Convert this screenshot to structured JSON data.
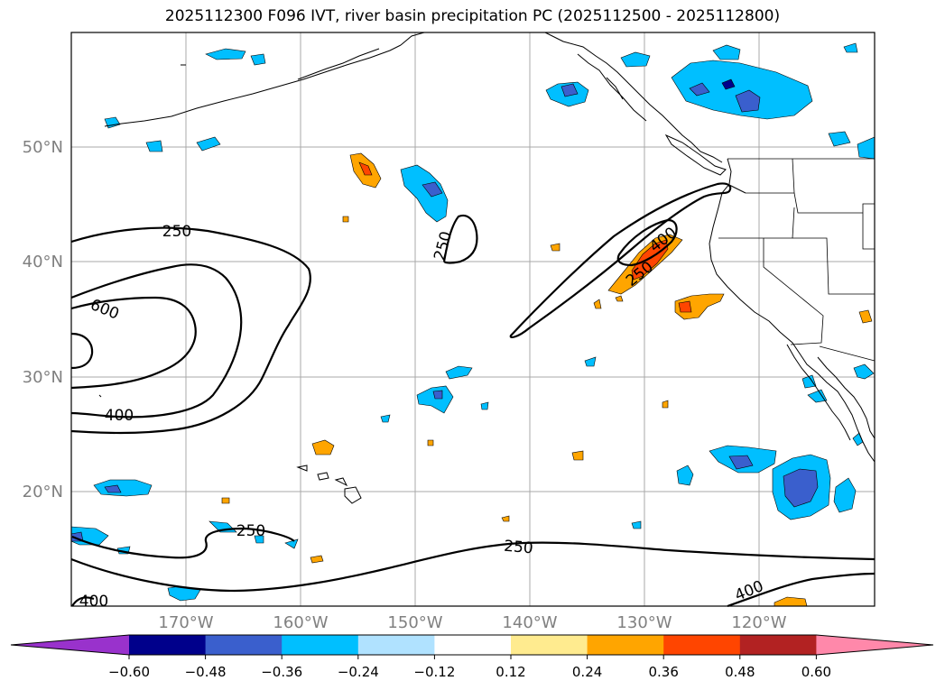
{
  "title": "2025112300 F096 IVT, river basin precipitation PC (2025112500 - 2025112800)",
  "map": {
    "lat_labels": [
      "50°N",
      "40°N",
      "30°N",
      "20°N"
    ],
    "lon_labels": [
      "170°W",
      "160°W",
      "150°W",
      "140°W",
      "130°W",
      "120°W"
    ],
    "contour_labels": [
      "250",
      "600",
      "400",
      "250",
      "400",
      "250",
      "250",
      "250",
      "400",
      "400"
    ]
  },
  "colorbar": {
    "ticks": [
      "−0.60",
      "−0.48",
      "−0.36",
      "−0.24",
      "−0.12",
      "0.12",
      "0.24",
      "0.36",
      "0.48",
      "0.60"
    ],
    "colors": [
      "#9932cc",
      "#00008b",
      "#3a5fcd",
      "#00bfff",
      "#b0e2ff",
      "#ffffff",
      "#ffeb8f",
      "#ffa500",
      "#ff4500",
      "#b22222",
      "#ff88aa"
    ]
  },
  "colors": {
    "blue_light": "#00bfff",
    "blue_mid": "#3a5fcd",
    "navy": "#00008b",
    "orange": "#ffa500",
    "red_orange": "#ff4500"
  }
}
